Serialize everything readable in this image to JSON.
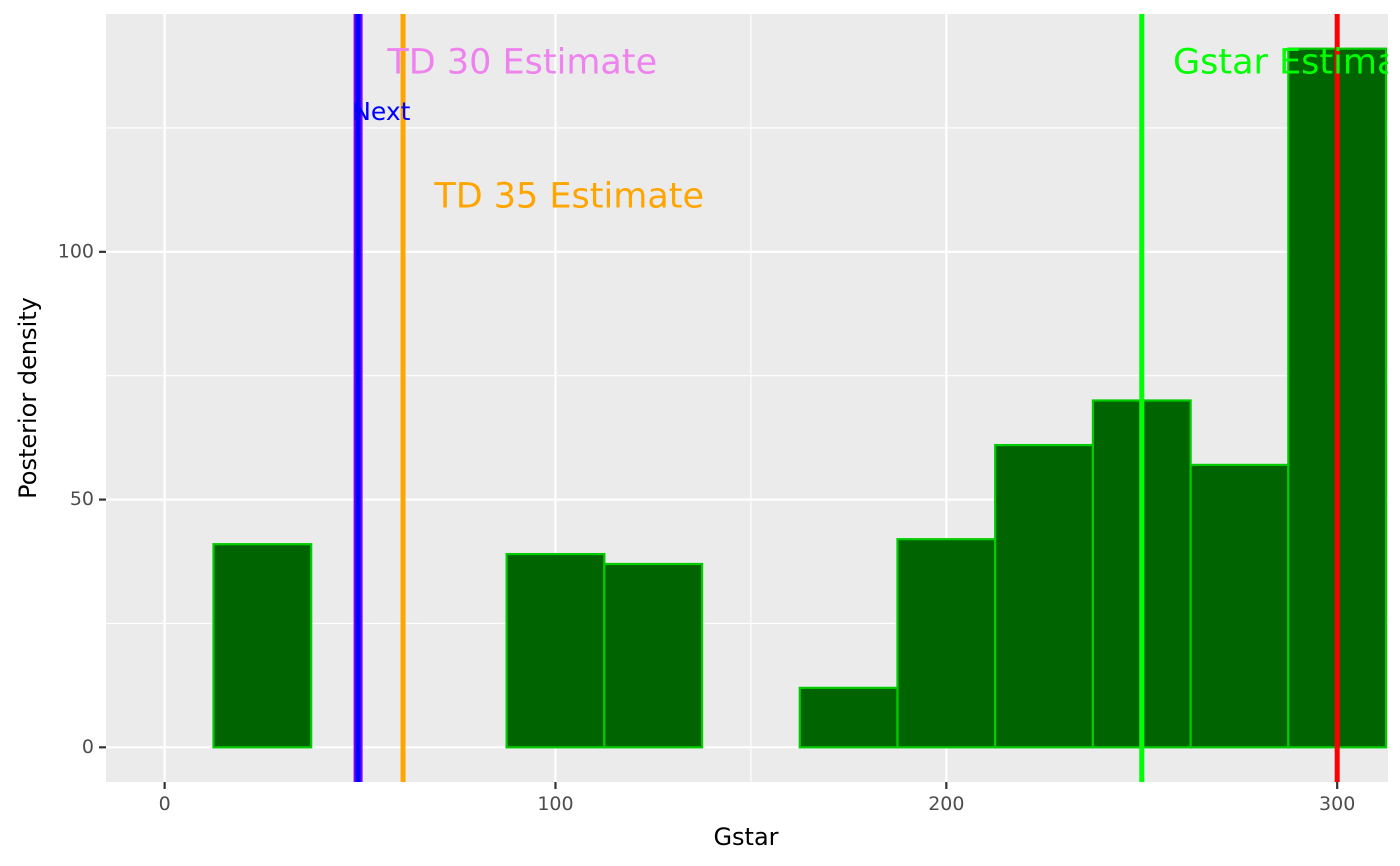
{
  "chart_data": {
    "type": "bar",
    "xlabel": "Gstar",
    "ylabel": "Posterior density",
    "xlim": [
      -15,
      313
    ],
    "ylim": [
      -7,
      148
    ],
    "x_ticks": [
      0,
      100,
      200,
      300
    ],
    "y_ticks": [
      0,
      50,
      100
    ],
    "grid": true,
    "bin_width": 25,
    "bins": [
      {
        "start": 12.5,
        "end": 37.5,
        "value": 41
      },
      {
        "start": 37.5,
        "end": 62.5,
        "value": 0
      },
      {
        "start": 62.5,
        "end": 87.5,
        "value": 0
      },
      {
        "start": 87.5,
        "end": 112.5,
        "value": 39
      },
      {
        "start": 112.5,
        "end": 137.5,
        "value": 37
      },
      {
        "start": 137.5,
        "end": 162.5,
        "value": 0
      },
      {
        "start": 162.5,
        "end": 187.5,
        "value": 12
      },
      {
        "start": 187.5,
        "end": 212.5,
        "value": 42
      },
      {
        "start": 212.5,
        "end": 237.5,
        "value": 61
      },
      {
        "start": 237.5,
        "end": 262.5,
        "value": 70
      },
      {
        "start": 262.5,
        "end": 287.5,
        "value": 57
      },
      {
        "start": 287.5,
        "end": 312.5,
        "value": 141
      }
    ],
    "bar_fill": "#006400",
    "bar_outline": "#00cc00",
    "vlines": [
      {
        "x": 49.5,
        "color": "#0000ff",
        "thick": true
      },
      {
        "x": 61,
        "color": "#ffa500",
        "thick": false
      },
      {
        "x": 250,
        "color": "#00ff00",
        "thick": false
      },
      {
        "x": 300,
        "color": "#ff0000",
        "thick": false
      }
    ],
    "annotations": [
      {
        "text": "TD 30 Estimate",
        "x": 57,
        "y": 138,
        "color": "#ee82ee",
        "size": "large"
      },
      {
        "text": "Next",
        "x": 48,
        "y": 128,
        "color": "#0000ff",
        "size": "small"
      },
      {
        "text": "TD 35 Estimate",
        "x": 69,
        "y": 111,
        "color": "#ffa500",
        "size": "large"
      },
      {
        "text": "Gstar Estimate",
        "x": 258,
        "y": 138,
        "color": "#00ff00",
        "size": "large"
      }
    ]
  }
}
